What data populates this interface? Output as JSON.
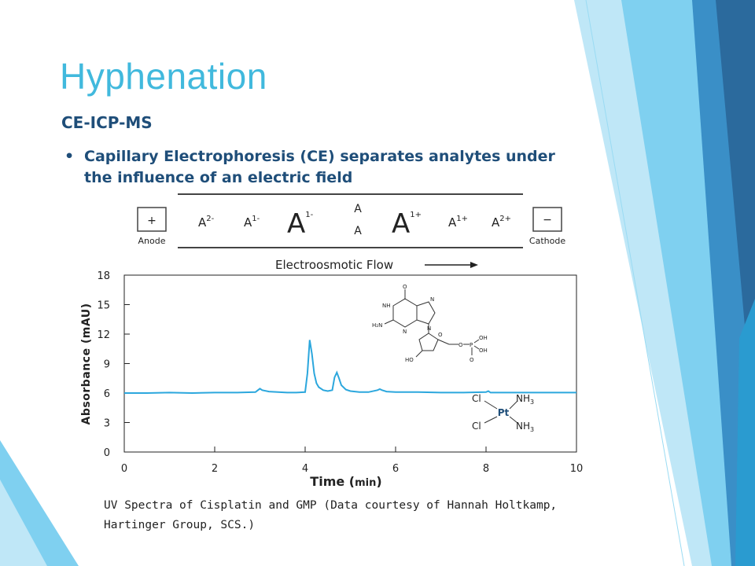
{
  "slide": {
    "title": "Hyphenation",
    "subtitle": "CE-ICP-MS",
    "bullet_glyph": "•",
    "bullet": "Capillary Electrophoresis (CE) separates analytes under the influence of an electric field",
    "caption": "UV Spectra of Cisplatin and GMP (Data courtesy of Hannah Holtkamp, Hartinger Group, SCS.)"
  },
  "colors": {
    "title": "#41B9DD",
    "text": "#1F4E79",
    "trace": "#2CA7DD",
    "deco_dark": "#2B6A9D",
    "deco_mid": "#3A8FC7",
    "deco_light": "#7FD0F0",
    "deco_pale": "#BFE7F7"
  },
  "ce_diagram": {
    "anode_sign": "+",
    "anode_label": "Anode",
    "cathode_sign": "−",
    "cathode_label": "Cathode",
    "species": [
      {
        "base": "A",
        "charge": "2-"
      },
      {
        "base": "A",
        "charge": "1-"
      },
      {
        "base": "A",
        "charge": "1-"
      },
      {
        "base": "A",
        "charge": ""
      },
      {
        "base": "A",
        "charge": ""
      },
      {
        "base": "A",
        "charge": "1+"
      },
      {
        "base": "A",
        "charge": "1+"
      },
      {
        "base": "A",
        "charge": "2+"
      }
    ],
    "flow_label": "Electroosmotic Flow"
  },
  "chart_data": {
    "type": "line",
    "xlabel_main": "Time (",
    "xlabel_unit": "min",
    "xlabel_close": ")",
    "ylabel": "Absorbance (mAU)",
    "xlim": [
      0,
      10
    ],
    "ylim": [
      0,
      18
    ],
    "xticks": [
      "0",
      "2",
      "4",
      "6",
      "8",
      "10"
    ],
    "yticks": [
      "0",
      "3",
      "6",
      "9",
      "12",
      "15",
      "18"
    ],
    "grid": false,
    "series": [
      {
        "x": [
          0,
          0.5,
          1,
          1.5,
          2,
          2.5,
          2.9,
          3.0,
          3.05,
          3.2,
          3.4,
          3.6,
          3.8,
          4.0,
          4.05,
          4.1,
          4.15,
          4.2,
          4.25,
          4.3,
          4.4,
          4.5,
          4.6,
          4.65,
          4.7,
          4.75,
          4.8,
          4.9,
          5.0,
          5.2,
          5.4,
          5.6,
          5.65,
          5.7,
          5.8,
          6.0,
          6.5,
          7.0,
          7.5,
          8.0,
          8.05,
          8.1,
          8.5,
          9.0,
          9.5,
          10.0
        ],
        "y": [
          6.0,
          6.0,
          6.05,
          6.0,
          6.05,
          6.05,
          6.1,
          6.45,
          6.3,
          6.15,
          6.1,
          6.05,
          6.05,
          6.1,
          8.0,
          11.4,
          10.0,
          8.0,
          7.0,
          6.6,
          6.3,
          6.2,
          6.3,
          7.6,
          8.1,
          7.5,
          6.8,
          6.35,
          6.2,
          6.1,
          6.1,
          6.3,
          6.4,
          6.3,
          6.15,
          6.1,
          6.1,
          6.05,
          6.05,
          6.1,
          6.2,
          6.05,
          6.05,
          6.05,
          6.05,
          6.05
        ]
      }
    ]
  },
  "cisplatin": {
    "cl_top": "Cl",
    "cl_bottom": "Cl",
    "nh3_top": "NH",
    "nh3_bottom": "NH",
    "subscript": "3",
    "metal": "Pt"
  },
  "gmp": {
    "o_top": "O",
    "nh": "NH",
    "h2n": "H₂N",
    "n1": "N",
    "n3": "N",
    "n7": "N",
    "n9": "N",
    "o_ring": "O",
    "ho": "HO",
    "o_link": "O",
    "p": "P",
    "oh1": "OH",
    "oh2": "OH",
    "o_dbl": "O"
  }
}
